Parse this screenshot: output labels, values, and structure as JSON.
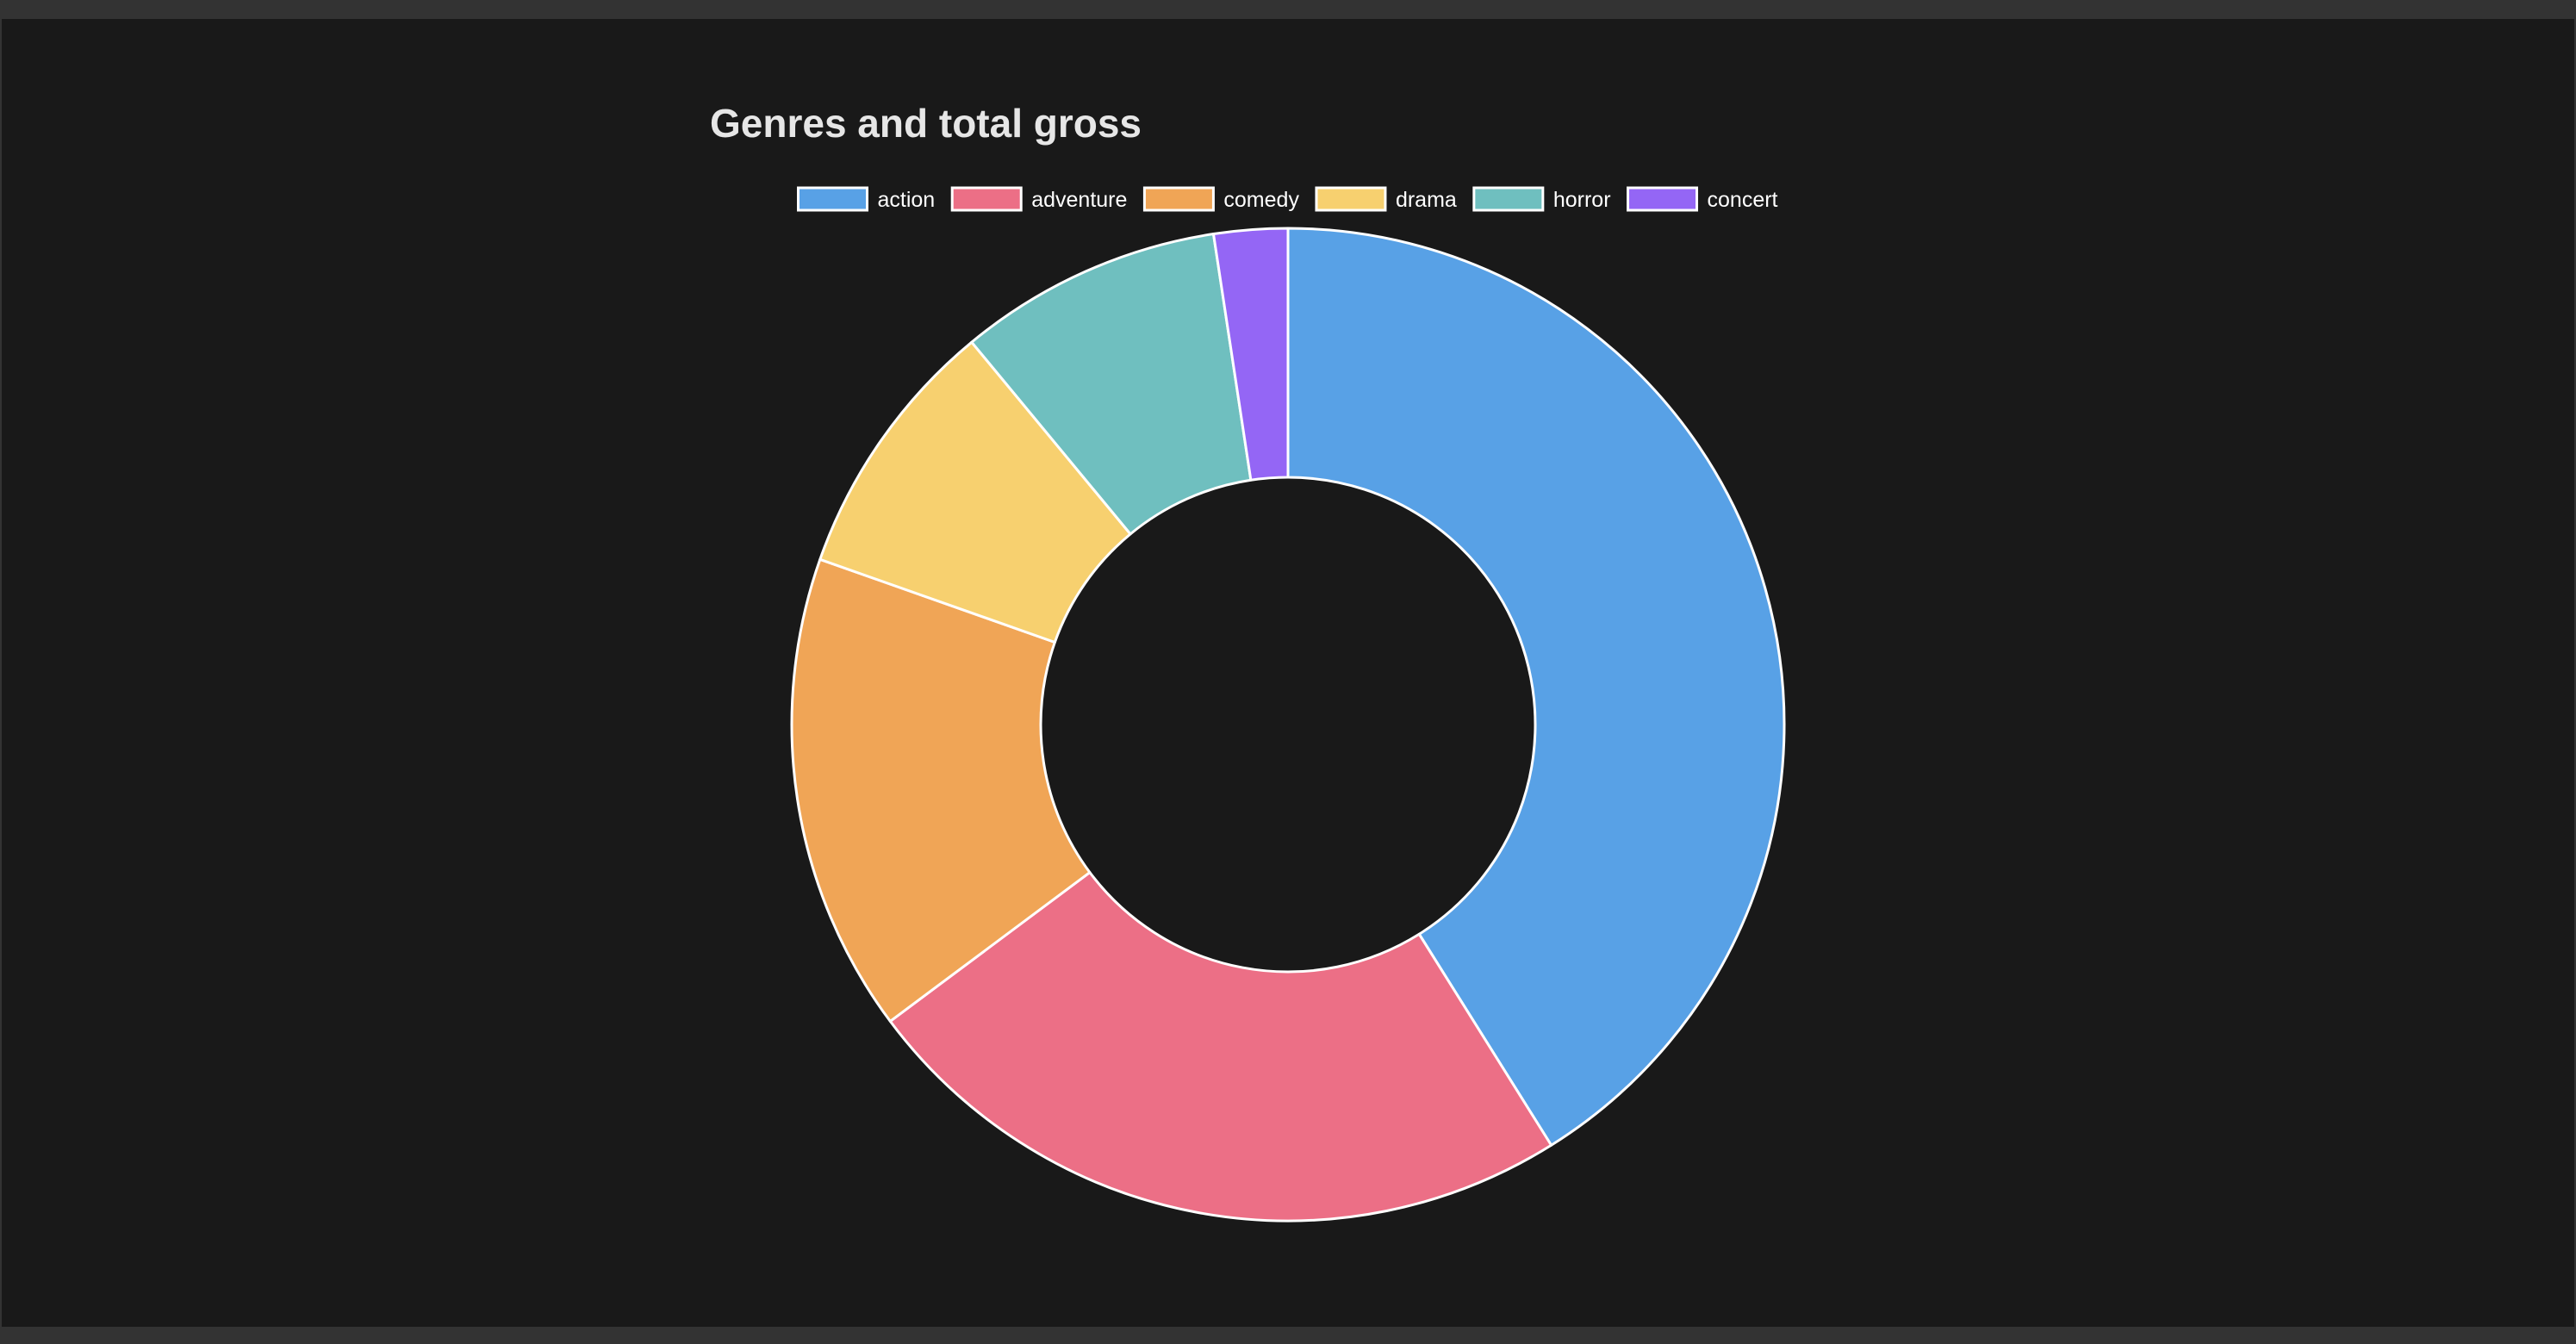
{
  "chart_data": {
    "type": "doughnut",
    "title": "Genres and total gross",
    "legend_position": "top",
    "categories": [
      "action",
      "adventure",
      "comedy",
      "drama",
      "horror",
      "concert"
    ],
    "values": [
      41.1,
      23.7,
      15.6,
      8.6,
      8.6,
      2.4
    ],
    "colors": [
      "#58a1e6",
      "#ec6f86",
      "#f0a556",
      "#f7d06f",
      "#6fbfbf",
      "#9466f5"
    ]
  }
}
